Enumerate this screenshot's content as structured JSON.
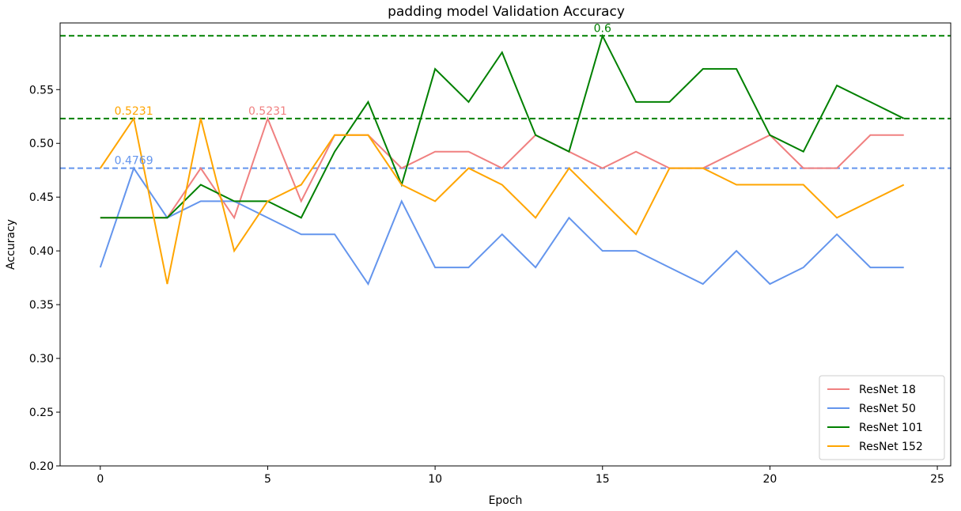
{
  "chart_data": {
    "type": "line",
    "title": "padding model Validation Accuracy",
    "xlabel": "Epoch",
    "ylabel": "Accuracy",
    "xlim": [
      -1.2,
      25.4
    ],
    "ylim": [
      0.2,
      0.612
    ],
    "xticks": [
      0,
      5,
      10,
      15,
      20,
      25
    ],
    "xtick_labels": [
      "0",
      "5",
      "10",
      "15",
      "20",
      "25"
    ],
    "yticks": [
      0.2,
      0.25,
      0.3,
      0.35,
      0.4,
      0.45,
      0.5,
      0.55
    ],
    "ytick_labels": [
      "0.20",
      "0.25",
      "0.30",
      "0.35",
      "0.40",
      "0.45",
      "0.50",
      "0.55"
    ],
    "grid": false,
    "legend_position": "lower-right",
    "x": [
      0,
      1,
      2,
      3,
      4,
      5,
      6,
      7,
      8,
      9,
      10,
      11,
      12,
      13,
      14,
      15,
      16,
      17,
      18,
      19,
      20,
      21,
      22,
      23,
      24
    ],
    "series": [
      {
        "name": "ResNet 18",
        "color": "#f08080",
        "values": [
          0.4308,
          0.4308,
          0.4308,
          0.4769,
          0.4308,
          0.5231,
          0.4462,
          0.5077,
          0.5077,
          0.4769,
          0.4923,
          0.4923,
          0.4769,
          0.5077,
          0.4923,
          0.4769,
          0.4923,
          0.4769,
          0.4769,
          0.4923,
          0.5077,
          0.4769,
          0.4769,
          0.5077,
          0.5077
        ]
      },
      {
        "name": "ResNet 50",
        "color": "#6495ed",
        "values": [
          0.3846,
          0.4769,
          0.4308,
          0.4462,
          0.4462,
          0.4308,
          0.4154,
          0.4154,
          0.3692,
          0.4462,
          0.3846,
          0.3846,
          0.4154,
          0.3846,
          0.4308,
          0.4,
          0.4,
          0.3846,
          0.3692,
          0.4,
          0.3692,
          0.3846,
          0.4154,
          0.3846,
          0.3846
        ]
      },
      {
        "name": "ResNet 101",
        "color": "#008000",
        "values": [
          0.4308,
          0.4308,
          0.4308,
          0.4615,
          0.4462,
          0.4462,
          0.4308,
          0.4923,
          0.5385,
          0.4615,
          0.5692,
          0.5385,
          0.5846,
          0.5077,
          0.4923,
          0.6,
          0.5385,
          0.5385,
          0.5692,
          0.5692,
          0.5077,
          0.4923,
          0.5538,
          0.5385,
          0.5231
        ]
      },
      {
        "name": "ResNet 152",
        "color": "#ffa500",
        "values": [
          0.4769,
          0.5231,
          0.3692,
          0.5231,
          0.4,
          0.4462,
          0.4615,
          0.5077,
          0.5077,
          0.4615,
          0.4462,
          0.4769,
          0.4615,
          0.4308,
          0.4769,
          0.4462,
          0.4154,
          0.4769,
          0.4769,
          0.4615,
          0.4615,
          0.4615,
          0.4308,
          0.4462,
          0.4615
        ]
      }
    ],
    "hlines": [
      {
        "y": 0.6,
        "color": "#008000"
      },
      {
        "y": 0.5231,
        "color": "#008000"
      },
      {
        "y": 0.4769,
        "color": "#6495ed"
      }
    ],
    "annotations": [
      {
        "text": "0.6",
        "x": 15,
        "y": 0.6,
        "color": "#008000"
      },
      {
        "text": "0.5231",
        "x": 1,
        "y": 0.5231,
        "color": "#ffa500"
      },
      {
        "text": "0.5231",
        "x": 5,
        "y": 0.5231,
        "color": "#f08080"
      },
      {
        "text": "0.4769",
        "x": 1,
        "y": 0.4769,
        "color": "#6495ed"
      }
    ]
  }
}
